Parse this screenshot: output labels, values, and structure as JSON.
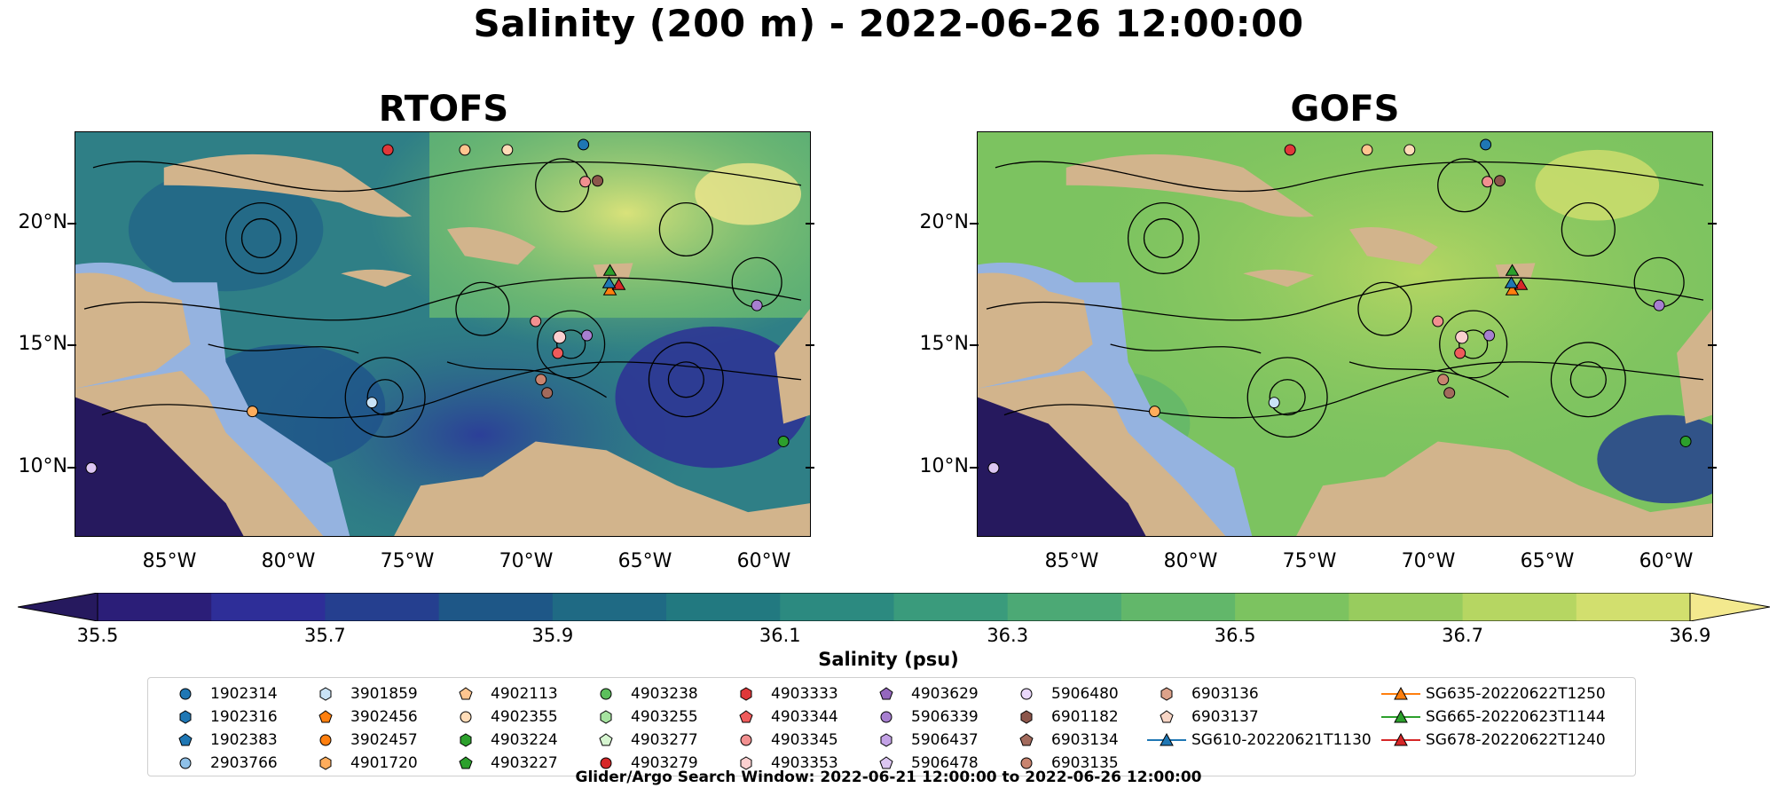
{
  "title": "Salinity (200 m) - 2022-06-26 12:00:00",
  "panels": [
    {
      "name": "RTOFS"
    },
    {
      "name": "GOFS"
    }
  ],
  "lat_labels": [
    "20°N",
    "15°N",
    "10°N"
  ],
  "lon_labels": [
    "85°W",
    "80°W",
    "75°W",
    "70°W",
    "65°W",
    "60°W"
  ],
  "colorbar": {
    "label": "Salinity (psu)",
    "ticks": [
      "35.5",
      "35.7",
      "35.9",
      "36.1",
      "36.3",
      "36.5",
      "36.7",
      "36.9"
    ],
    "colors": [
      "#2b1e78",
      "#2e2e98",
      "#253f8f",
      "#1e5787",
      "#1f6a84",
      "#227980",
      "#2c8a80",
      "#3a9b7c",
      "#4ca975",
      "#62b76a",
      "#7cc360",
      "#98cc5e",
      "#b6d662",
      "#d2df6e"
    ],
    "under": "#26195e",
    "over": "#f3e98e"
  },
  "legend": {
    "columns": [
      [
        {
          "label": "1902314",
          "marker": "circle",
          "color": "#1f77b4"
        },
        {
          "label": "1902316",
          "marker": "hexagon",
          "color": "#1f77b4"
        },
        {
          "label": "1902383",
          "marker": "pentagon",
          "color": "#1f77b4"
        },
        {
          "label": "2903766",
          "marker": "circle",
          "color": "#8fc1e8"
        }
      ],
      [
        {
          "label": "3901859",
          "marker": "hexagon",
          "color": "#c9e3f7"
        },
        {
          "label": "3902456",
          "marker": "pentagon",
          "color": "#ff7f0e"
        },
        {
          "label": "3902457",
          "marker": "circle",
          "color": "#ff7f0e"
        },
        {
          "label": "4901720",
          "marker": "hexagon",
          "color": "#ffad5c"
        }
      ],
      [
        {
          "label": "4902113",
          "marker": "pentagon",
          "color": "#ffc58f"
        },
        {
          "label": "4902355",
          "marker": "circle",
          "color": "#ffdcb8"
        },
        {
          "label": "4903224",
          "marker": "hexagon",
          "color": "#2ca02c"
        },
        {
          "label": "4903227",
          "marker": "pentagon",
          "color": "#2ca02c"
        }
      ],
      [
        {
          "label": "4903238",
          "marker": "circle",
          "color": "#5cbf5c"
        },
        {
          "label": "4903255",
          "marker": "hexagon",
          "color": "#a6e3a0"
        },
        {
          "label": "4903277",
          "marker": "pentagon",
          "color": "#d6f5d0"
        },
        {
          "label": "4903279",
          "marker": "circle",
          "color": "#d62728"
        }
      ],
      [
        {
          "label": "4903333",
          "marker": "hexagon",
          "color": "#e0383a"
        },
        {
          "label": "4903344",
          "marker": "pentagon",
          "color": "#ef5b5b"
        },
        {
          "label": "4903345",
          "marker": "circle",
          "color": "#f29090"
        },
        {
          "label": "4903353",
          "marker": "hexagon",
          "color": "#fcd0d0"
        }
      ],
      [
        {
          "label": "4903629",
          "marker": "pentagon",
          "color": "#9467bd"
        },
        {
          "label": "5906339",
          "marker": "circle",
          "color": "#a77fd0"
        },
        {
          "label": "5906437",
          "marker": "hexagon",
          "color": "#c3a2e6"
        },
        {
          "label": "5906478",
          "marker": "pentagon",
          "color": "#dcc6f2"
        }
      ],
      [
        {
          "label": "5906480",
          "marker": "circle",
          "color": "#ead8fb"
        },
        {
          "label": "6901182",
          "marker": "hexagon",
          "color": "#8c564b"
        },
        {
          "label": "6903134",
          "marker": "pentagon",
          "color": "#a26a5c"
        },
        {
          "label": "6903135",
          "marker": "circle",
          "color": "#c9846f"
        }
      ],
      [
        {
          "label": "6903136",
          "marker": "hexagon",
          "color": "#dca28a"
        },
        {
          "label": "6903137",
          "marker": "pentagon",
          "color": "#f7d5c5"
        },
        {
          "label": "SG610-20220621T1130",
          "marker": "line-triangle",
          "color": "#1f77b4"
        }
      ],
      [
        {
          "label": "SG635-20220622T1250",
          "marker": "line-triangle",
          "color": "#ff7f0e"
        },
        {
          "label": "SG665-20220623T1144",
          "marker": "line-triangle",
          "color": "#2ca02c"
        },
        {
          "label": "SG678-20220622T1240",
          "marker": "line-triangle",
          "color": "#d62728"
        }
      ]
    ]
  },
  "search_window": "Glider/Argo Search Window: 2022-06-21 12:00:00 to 2022-06-26 12:00:00",
  "colors": {
    "land": "#d2b48c",
    "shelf": "#95b3e0",
    "deep": "#26195e"
  }
}
